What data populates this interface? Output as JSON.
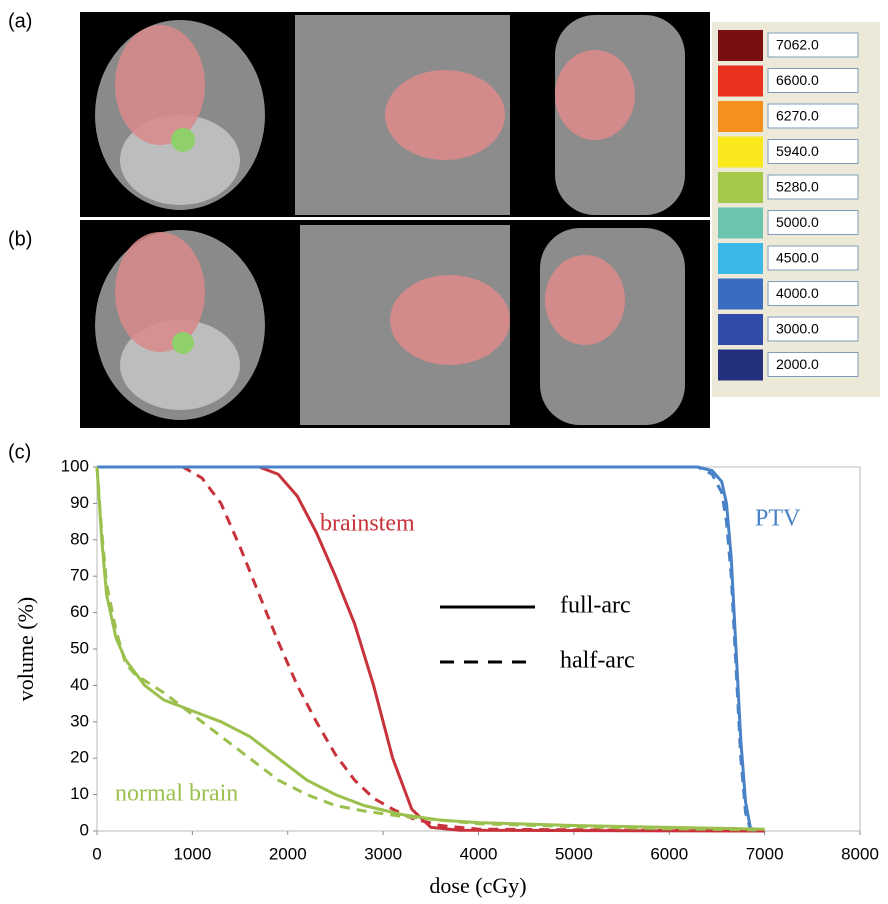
{
  "panel_labels": [
    "(a)",
    "(b)",
    "(c)"
  ],
  "dose_legend": [
    {
      "label": "7062.0",
      "color": "#7a0f12"
    },
    {
      "label": "6600.0",
      "color": "#e8321e"
    },
    {
      "label": "6270.0",
      "color": "#f5901e"
    },
    {
      "label": "5940.0",
      "color": "#f8e81c"
    },
    {
      "label": "5280.0",
      "color": "#a4c84a"
    },
    {
      "label": "5000.0",
      "color": "#6cc4ae"
    },
    {
      "label": "4500.0",
      "color": "#3cb8e8"
    },
    {
      "label": "4000.0",
      "color": "#3a6cc0"
    },
    {
      "label": "3000.0",
      "color": "#2e4ca8"
    },
    {
      "label": "2000.0",
      "color": "#24307e"
    }
  ],
  "chart_data": {
    "type": "line",
    "xlabel": "dose (cGy)",
    "ylabel": "volume (%)",
    "xlim": [
      0,
      8000
    ],
    "xticks": [
      0,
      1000,
      2000,
      3000,
      4000,
      5000,
      6000,
      7000,
      8000
    ],
    "ylim": [
      0,
      100
    ],
    "yticks": [
      0,
      10,
      20,
      30,
      40,
      50,
      60,
      70,
      80,
      90,
      100
    ],
    "annotations": [
      {
        "text": "brainstem",
        "color": "#c8323a"
      },
      {
        "text": "PTV",
        "color": "#4a82c8"
      },
      {
        "text": "normal brain",
        "color": "#9cc04e"
      }
    ],
    "line_styles": [
      {
        "label": "full-arc",
        "dash": "solid"
      },
      {
        "label": "half-arc",
        "dash": "dashed"
      }
    ],
    "series": [
      {
        "color": "#c8323a",
        "dash": "solid",
        "x": [
          0,
          1700,
          1900,
          2100,
          2300,
          2500,
          2700,
          2900,
          3100,
          3300,
          3500,
          3800,
          7000
        ],
        "values": [
          100,
          100,
          98,
          92,
          82,
          70,
          57,
          40,
          20,
          6,
          1,
          0.2,
          0
        ]
      },
      {
        "color": "#c8323a",
        "dash": "dashed",
        "x": [
          0,
          900,
          1100,
          1300,
          1500,
          1700,
          1900,
          2100,
          2300,
          2500,
          2700,
          2900,
          3100,
          3300,
          3600,
          4000,
          7000
        ],
        "values": [
          100,
          100,
          97,
          90,
          78,
          65,
          52,
          40,
          30,
          21,
          14,
          9,
          6,
          3.5,
          1.5,
          0.5,
          0
        ]
      },
      {
        "color": "#4a82c8",
        "dash": "solid",
        "x": [
          0,
          6300,
          6450,
          6550,
          6600,
          6650,
          6700,
          6750,
          6800,
          6850,
          6900
        ],
        "values": [
          100,
          100,
          99,
          96,
          90,
          75,
          50,
          25,
          8,
          1,
          0
        ]
      },
      {
        "color": "#4a82c8",
        "dash": "dashed",
        "x": [
          0,
          6300,
          6450,
          6550,
          6600,
          6650,
          6700,
          6750,
          6800,
          6850,
          6900
        ],
        "values": [
          100,
          100,
          98,
          93,
          85,
          70,
          45,
          20,
          5,
          0.5,
          0
        ]
      },
      {
        "color": "#9cc04e",
        "dash": "solid",
        "x": [
          0,
          50,
          100,
          200,
          300,
          500,
          700,
          1000,
          1300,
          1600,
          1900,
          2200,
          2500,
          2800,
          3200,
          3600,
          4000,
          5000,
          6000,
          7000
        ],
        "values": [
          100,
          80,
          65,
          53,
          47,
          40,
          36,
          33,
          30,
          26,
          20,
          14,
          10,
          7,
          4.5,
          3,
          2.3,
          1.5,
          1,
          0.5
        ]
      },
      {
        "color": "#9cc04e",
        "dash": "dashed",
        "x": [
          0,
          50,
          100,
          200,
          300,
          400,
          700,
          1000,
          1300,
          1600,
          1900,
          2200,
          2500,
          2800,
          3200,
          3600,
          4000,
          5000,
          6000,
          7000
        ],
        "values": [
          100,
          82,
          68,
          55,
          46,
          43,
          38,
          32,
          26,
          20,
          14,
          10,
          7,
          5.5,
          4,
          3,
          2,
          1.2,
          0.6,
          0.3
        ]
      }
    ]
  }
}
